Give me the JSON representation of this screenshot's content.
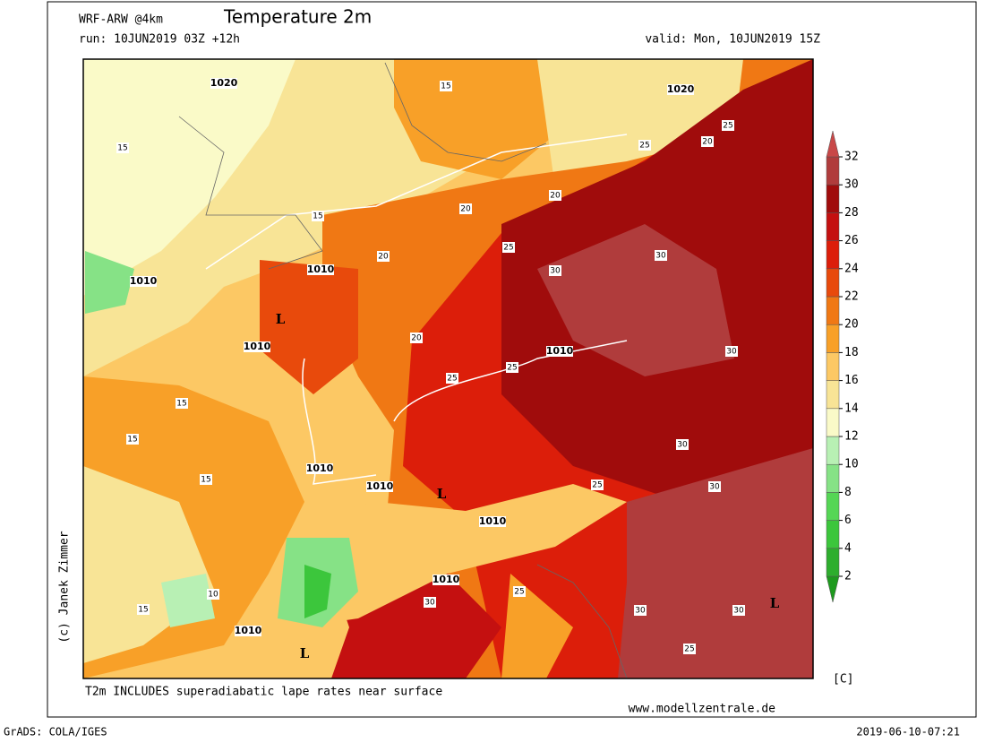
{
  "header": {
    "model": "WRF-ARW @4km",
    "title": "Temperature 2m",
    "run": "run: 10JUN2019 03Z +12h",
    "valid": "valid: Mon, 10JUN2019 15Z"
  },
  "colorbar": {
    "levels": [
      2,
      4,
      6,
      8,
      10,
      12,
      14,
      16,
      18,
      20,
      22,
      24,
      26,
      28,
      30,
      32
    ],
    "colors": [
      "#1e9a1e",
      "#2eae2e",
      "#3cc63c",
      "#55d655",
      "#86e286",
      "#b8f0b4",
      "#fafac8",
      "#f8e496",
      "#fcc864",
      "#f8a028",
      "#f07814",
      "#e84a0c",
      "#dc1e0a",
      "#c41010",
      "#a00c0c",
      "#b03c3c",
      "#c84848"
    ],
    "unit": "[C]"
  },
  "map_labels": [
    "1020",
    "1020",
    "1010",
    "1010",
    "1010",
    "1010",
    "1010",
    "1010",
    "1010",
    "1010",
    "1010",
    "L",
    "L",
    "L",
    "L",
    "15",
    "15",
    "15",
    "20",
    "20",
    "25",
    "30",
    "30",
    "25",
    "25",
    "30",
    "30",
    "25",
    "20",
    "20",
    "15",
    "15",
    "15",
    "10",
    "15",
    "25",
    "20",
    "25",
    "30",
    "30",
    "30",
    "25",
    "30",
    "25"
  ],
  "footer": {
    "note": "T2m INCLUDES superadiabatic lape rates near surface",
    "website": "www.modellzentrale.de",
    "credit": "(c) Janek Zimmer",
    "software": "GrADS: COLA/IGES",
    "timestamp": "2019-06-10-07:21"
  }
}
